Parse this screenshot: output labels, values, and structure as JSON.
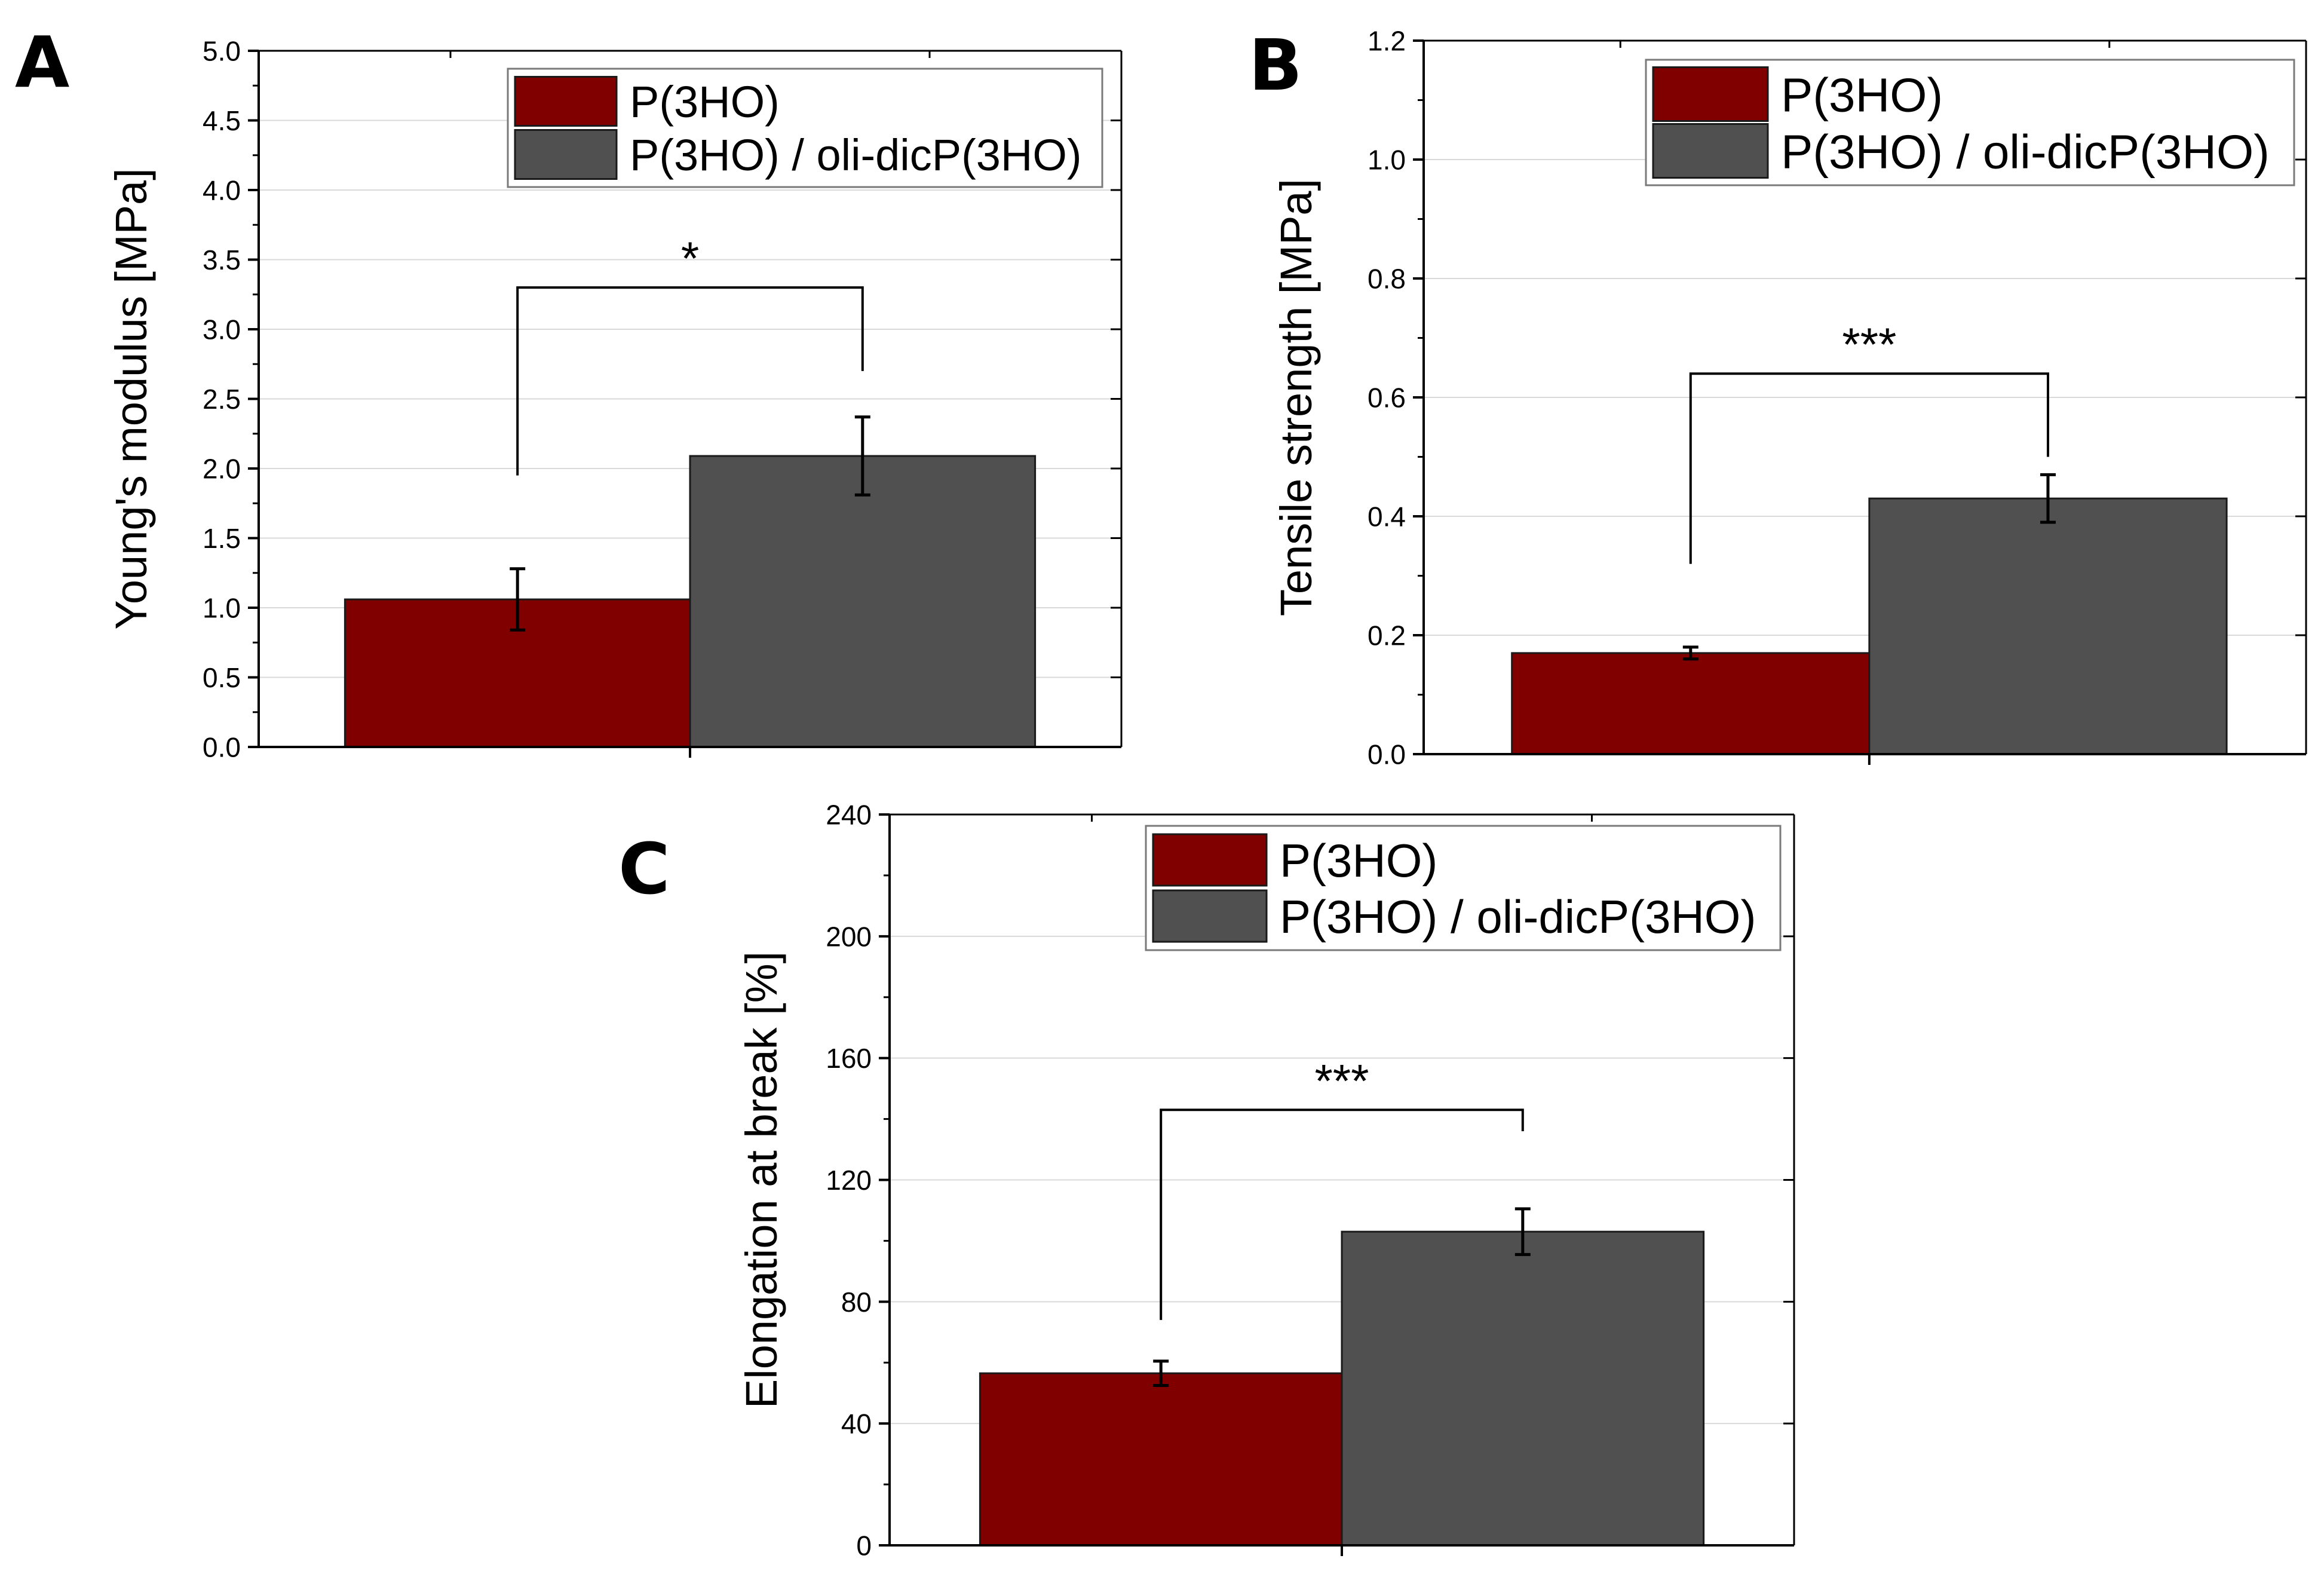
{
  "colors": {
    "series1": "#800000",
    "series2": "#505050",
    "grid": "#d9d9d9",
    "axis": "#000000",
    "legend_border": "#7a7a7a"
  },
  "chart_data": [
    {
      "panel": "A",
      "type": "bar",
      "ylabel": "Young's modulus [MPa]",
      "xlabel": "",
      "ylim": [
        0,
        5
      ],
      "yticks": [
        "0.0",
        "0.5",
        "1.0",
        "1.5",
        "2.0",
        "2.5",
        "3.0",
        "3.5",
        "4.0",
        "4.5",
        "5.0"
      ],
      "series": [
        {
          "name": "P(3HO)",
          "value": 1.06,
          "error": 0.22
        },
        {
          "name": "P(3HO) / oli-dicP(3HO)",
          "value": 2.09,
          "error": 0.28
        }
      ],
      "significance": {
        "label": "*",
        "level": 3.3,
        "left_end": 1.95,
        "right_end": 2.7
      },
      "legend": "top-right"
    },
    {
      "panel": "B",
      "type": "bar",
      "ylabel": "Tensile strength [MPa]",
      "xlabel": "",
      "ylim": [
        0,
        1.2
      ],
      "yticks": [
        "0.0",
        "0.2",
        "0.4",
        "0.6",
        "0.8",
        "1.0",
        "1.2"
      ],
      "series": [
        {
          "name": "P(3HO)",
          "value": 0.17,
          "error": 0.01
        },
        {
          "name": "P(3HO) / oli-dicP(3HO)",
          "value": 0.43,
          "error": 0.04
        }
      ],
      "significance": {
        "label": "***",
        "level": 0.64,
        "left_end": 0.32,
        "right_end": 0.5
      },
      "legend": "top-right"
    },
    {
      "panel": "C",
      "type": "bar",
      "ylabel": "Elongation at break [%]",
      "xlabel": "",
      "ylim": [
        0,
        240
      ],
      "yticks": [
        "0",
        "40",
        "80",
        "120",
        "160",
        "200",
        "240"
      ],
      "series": [
        {
          "name": "P(3HO)",
          "value": 56.5,
          "error": 4
        },
        {
          "name": "P(3HO) / oli-dicP(3HO)",
          "value": 103,
          "error": 7.5
        }
      ],
      "significance": {
        "label": "***",
        "level": 143,
        "left_end": 74,
        "right_end": 136
      },
      "legend": "top-right"
    }
  ]
}
